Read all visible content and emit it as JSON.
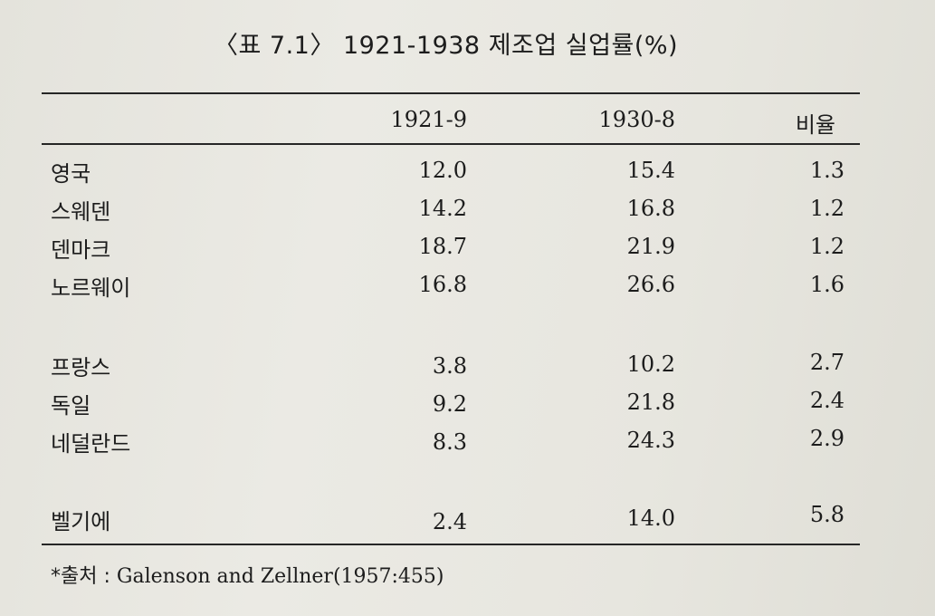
{
  "title": "〈표 7.1〉 1921-1938 제조업 실업률(%)",
  "headers": [
    "1921-9",
    "1930-8",
    "비율"
  ],
  "rows": [
    {
      "country": "영국",
      "p1": "12.0",
      "p2": "15.4",
      "ratio": "1.3"
    },
    {
      "country": "스웨덴",
      "p1": "14.2",
      "p2": "16.8",
      "ratio": "1.2"
    },
    {
      "country": "덴마크",
      "p1": "18.7",
      "p2": "21.9",
      "ratio": "1.2"
    },
    {
      "country": "노르웨이",
      "p1": "16.8",
      "p2": "26.6",
      "ratio": "1.6"
    },
    {
      "country": "프랑스",
      "p1": "3.8",
      "p2": "10.2",
      "ratio": "2.7"
    },
    {
      "country": "독일",
      "p1": "9.2",
      "p2": "21.8",
      "ratio": "2.4"
    },
    {
      "country": "네덜란드",
      "p1": "8.3",
      "p2": "24.3",
      "ratio": "2.9"
    },
    {
      "country": "벨기에",
      "p1": "2.4",
      "p2": "14.0",
      "ratio": "5.8"
    }
  ],
  "source": {
    "label": "*출처 : ",
    "text": "Galenson and Zellner(1957:455)"
  }
}
